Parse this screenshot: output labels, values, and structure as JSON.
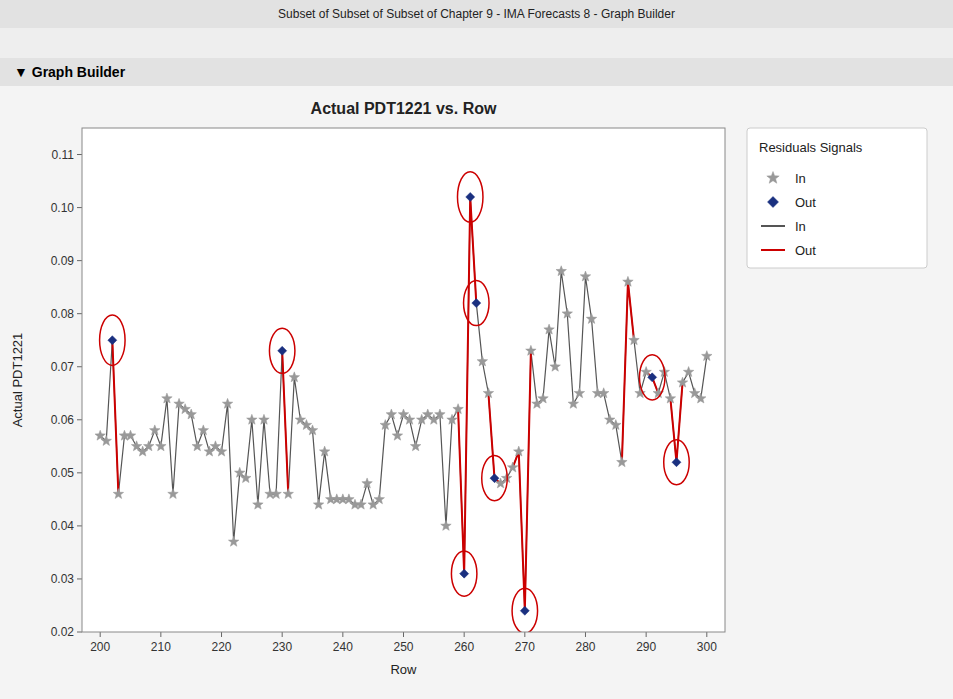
{
  "chart_data": {
    "type": "line",
    "title": "Actual PDT1221 vs. Row",
    "x_label": "Row",
    "y_label": "Actual PDT1221",
    "annotations": [
      "Subset of Subset of Subset of Chapter 9 - IMA Forecasts 8 - Graph Builder",
      "▼  Graph Builder"
    ],
    "legend_title": "Residuals Signals",
    "legend": "right",
    "grid": false,
    "xlim": [
      197,
      303
    ],
    "ylim": [
      0.02,
      0.115
    ],
    "xticks": [
      200,
      210,
      220,
      230,
      240,
      250,
      260,
      270,
      280,
      290,
      300
    ],
    "yticks": [
      0.02,
      0.03,
      0.04,
      0.05,
      0.06,
      0.07,
      0.08,
      0.09,
      {
        "value": 0.1,
        "label": "0.10"
      },
      0.11
    ],
    "x": [
      200,
      201,
      202,
      203,
      204,
      205,
      206,
      207,
      208,
      209,
      210,
      211,
      212,
      213,
      214,
      215,
      216,
      217,
      218,
      219,
      220,
      221,
      222,
      223,
      224,
      225,
      226,
      227,
      228,
      229,
      230,
      231,
      232,
      233,
      234,
      235,
      236,
      237,
      238,
      239,
      240,
      241,
      242,
      243,
      244,
      245,
      246,
      247,
      248,
      249,
      250,
      251,
      252,
      253,
      254,
      255,
      256,
      257,
      258,
      259,
      260,
      261,
      262,
      263,
      264,
      265,
      266,
      267,
      268,
      269,
      270,
      271,
      272,
      273,
      274,
      275,
      276,
      277,
      278,
      279,
      280,
      281,
      282,
      283,
      284,
      285,
      286,
      287,
      288,
      289,
      290,
      291,
      292,
      293,
      294,
      295,
      296,
      297,
      298,
      299,
      300
    ],
    "series": [
      {
        "name": "In",
        "type": "scatter",
        "marker": "star",
        "color": "#999999",
        "values": [
          0.057,
          0.056,
          null,
          0.046,
          0.057,
          0.057,
          0.055,
          0.054,
          0.055,
          0.058,
          0.055,
          0.064,
          0.046,
          0.063,
          0.062,
          0.061,
          0.055,
          0.058,
          0.054,
          0.055,
          0.054,
          0.063,
          0.037,
          0.05,
          0.049,
          0.06,
          0.044,
          0.06,
          0.046,
          0.046,
          null,
          0.046,
          0.068,
          0.06,
          0.059,
          0.058,
          0.044,
          0.054,
          0.045,
          0.045,
          0.045,
          0.045,
          0.044,
          0.044,
          0.048,
          0.044,
          0.045,
          0.059,
          0.061,
          0.057,
          0.061,
          0.06,
          0.055,
          0.06,
          0.061,
          0.06,
          0.061,
          0.04,
          0.06,
          0.062,
          null,
          null,
          null,
          0.071,
          0.065,
          null,
          0.048,
          0.049,
          0.051,
          0.054,
          null,
          0.073,
          0.063,
          0.064,
          0.077,
          0.07,
          0.088,
          0.08,
          0.063,
          0.065,
          0.087,
          0.079,
          0.065,
          0.065,
          0.06,
          0.059,
          0.052,
          0.086,
          0.075,
          0.065,
          0.069,
          null,
          0.065,
          0.069,
          0.064,
          null,
          0.067,
          0.069,
          0.065,
          0.064,
          0.072
        ]
      },
      {
        "name": "Out",
        "type": "scatter",
        "marker": "diamond",
        "color": "#1a3080",
        "x": [
          202,
          230,
          260,
          261,
          262,
          265,
          270,
          291,
          295
        ],
        "values": [
          0.075,
          0.073,
          0.031,
          0.102,
          0.082,
          0.049,
          0.024,
          0.068,
          0.052
        ],
        "ellipse_widths": [
          4.2,
          4.2,
          4.2,
          4.2,
          4.2,
          4.2,
          4.2,
          4.2,
          4.2
        ],
        "ellipse_heights": [
          0.0095,
          0.0085,
          0.0085,
          0.0095,
          0.0085,
          0.0085,
          0.0085,
          0.0085,
          0.0085
        ]
      },
      {
        "name": "In",
        "type": "line",
        "line_style": "solid",
        "color": "#555555",
        "values": [
          0.057,
          0.056,
          0.075,
          0.046,
          0.057,
          0.057,
          0.055,
          0.054,
          0.055,
          0.058,
          0.055,
          0.064,
          0.046,
          0.063,
          0.062,
          0.061,
          0.055,
          0.058,
          0.054,
          0.055,
          0.054,
          0.063,
          0.037,
          0.05,
          0.049,
          0.06,
          0.044,
          0.06,
          0.046,
          0.046,
          0.073,
          0.046,
          0.068,
          0.06,
          0.059,
          0.058,
          0.044,
          0.054,
          0.045,
          0.045,
          0.045,
          0.045,
          0.044,
          0.044,
          0.048,
          0.044,
          0.045,
          0.059,
          0.061,
          0.057,
          0.061,
          0.06,
          0.055,
          0.06,
          0.061,
          0.06,
          0.061,
          0.04,
          0.06,
          0.062,
          0.031,
          0.102,
          0.082,
          0.071,
          0.065,
          0.049,
          0.048,
          0.049,
          0.051,
          0.054,
          0.024,
          0.073,
          0.063,
          0.064,
          0.077,
          0.07,
          0.088,
          0.08,
          0.063,
          0.065,
          0.087,
          0.079,
          0.065,
          0.065,
          0.06,
          0.059,
          0.052,
          0.086,
          0.075,
          0.065,
          0.069,
          0.068,
          0.065,
          0.069,
          0.064,
          0.052,
          0.067,
          0.069,
          0.065,
          0.064,
          0.072
        ]
      },
      {
        "name": "Out",
        "type": "line",
        "line_style": "solid",
        "color": "#cc0000",
        "values": [
          null,
          null,
          0.075,
          0.046,
          null,
          null,
          null,
          null,
          null,
          null,
          null,
          null,
          null,
          null,
          null,
          null,
          null,
          null,
          null,
          null,
          null,
          null,
          null,
          null,
          null,
          null,
          null,
          null,
          null,
          null,
          0.073,
          0.046,
          null,
          null,
          null,
          null,
          null,
          null,
          null,
          null,
          null,
          null,
          null,
          null,
          null,
          null,
          null,
          null,
          null,
          null,
          null,
          null,
          null,
          null,
          null,
          null,
          null,
          null,
          null,
          0.062,
          0.031,
          0.102,
          0.082,
          null,
          0.065,
          0.049,
          0.048,
          null,
          0.051,
          0.054,
          0.024,
          0.073,
          null,
          null,
          null,
          null,
          null,
          null,
          null,
          null,
          null,
          null,
          null,
          null,
          null,
          null,
          0.052,
          0.086,
          0.075,
          null,
          0.069,
          0.068,
          0.065,
          null,
          0.064,
          0.052,
          0.067,
          null,
          null,
          null,
          null
        ]
      }
    ]
  }
}
